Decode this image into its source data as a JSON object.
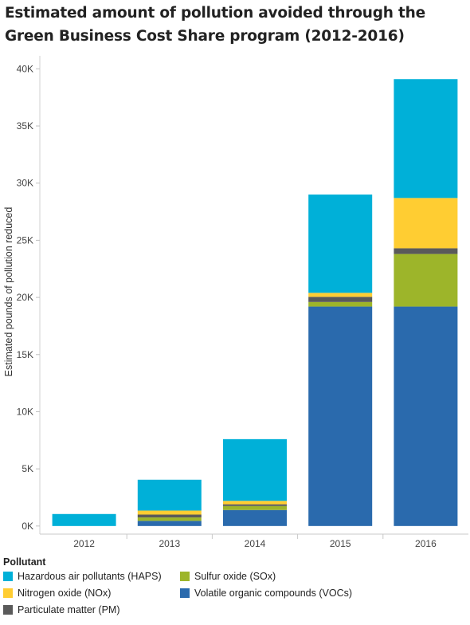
{
  "chart_data": {
    "type": "bar",
    "stacked": true,
    "title": "Estimated amount of pollution avoided through the Green Business Cost Share program (2012-2016)",
    "ylabel": "Estimated pounds of pollution reduced",
    "xlabel": "",
    "categories": [
      "2012",
      "2013",
      "2014",
      "2015",
      "2016"
    ],
    "ylim": [
      -500,
      41000
    ],
    "yticks": [
      0,
      5000,
      10000,
      15000,
      20000,
      25000,
      30000,
      35000,
      40000
    ],
    "ytick_labels": [
      "0K",
      "5K",
      "10K",
      "15K",
      "20K",
      "25K",
      "30K",
      "35K",
      "40K"
    ],
    "grid": false,
    "legend_title": "Pollutant",
    "legend_position": "bottom",
    "stack_order": [
      "Volatile organic compounds (VOCs)",
      "Sulfur oxide (SOx)",
      "Particulate matter (PM)",
      "Nitrogen oxide (NOx)",
      "Hazardous air pollutants (HAPS)"
    ],
    "series": [
      {
        "name": "Hazardous air pollutants (HAPS)",
        "color": "#00b0d8",
        "values": [
          1050,
          2700,
          5400,
          8600,
          10400
        ]
      },
      {
        "name": "Nitrogen oxide (NOx)",
        "color": "#ffcd32",
        "values": [
          0,
          350,
          300,
          350,
          4400
        ]
      },
      {
        "name": "Particulate matter (PM)",
        "color": "#5a5a5a",
        "values": [
          0,
          250,
          150,
          450,
          500
        ]
      },
      {
        "name": "Sulfur oxide (SOx)",
        "color": "#9db52a",
        "values": [
          0,
          300,
          350,
          400,
          4600
        ]
      },
      {
        "name": "Volatile organic compounds (VOCs)",
        "color": "#2a6aad",
        "values": [
          0,
          450,
          1400,
          19200,
          19200
        ]
      }
    ]
  },
  "legend_layout": [
    {
      "name": "Hazardous air pollutants (HAPS)",
      "color": "#00b0d8"
    },
    {
      "name": "Sulfur oxide (SOx)",
      "color": "#9db52a"
    },
    {
      "name": "Nitrogen oxide (NOx)",
      "color": "#ffcd32"
    },
    {
      "name": "Volatile organic compounds (VOCs)",
      "color": "#2a6aad"
    },
    {
      "name": "Particulate matter (PM)",
      "color": "#5a5a5a"
    }
  ]
}
